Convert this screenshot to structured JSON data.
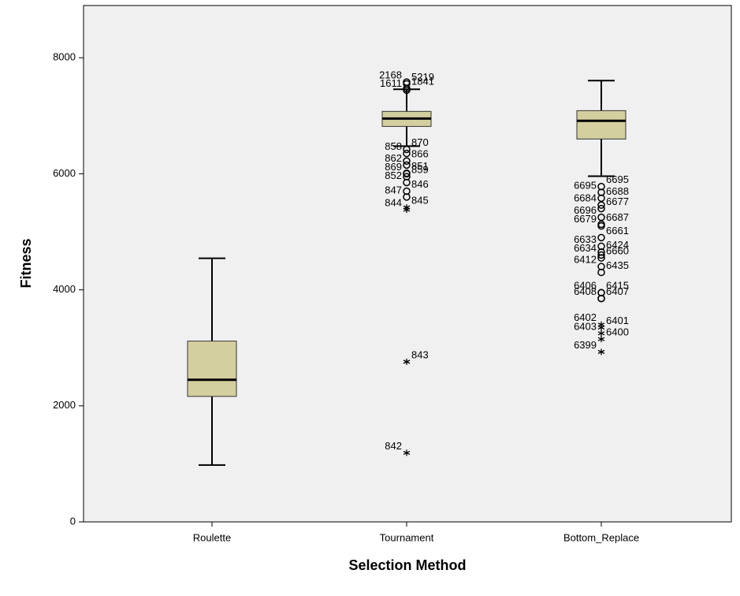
{
  "chart_data": {
    "type": "boxplot",
    "x_label": "Selection Method",
    "y_label": "Fitness",
    "categories": [
      "Roulette",
      "Tournament",
      "Bottom_Replace"
    ],
    "ylim": [
      0,
      8900
    ],
    "yticks": [
      0,
      2000,
      4000,
      6000,
      8000
    ],
    "color": "#d4cf9f",
    "background": "#f0f0f0",
    "boxes": [
      {
        "whisker_low": 980,
        "q1": 2163,
        "median": 2449,
        "q3": 3116,
        "whisker_high": 4544,
        "outliers": []
      },
      {
        "whisker_low": 6476,
        "q1": 6816,
        "median": 6952,
        "q3": 7075,
        "whisker_high": 7456,
        "outliers": [
          {
            "value": 7550,
            "label": "5219",
            "marker": "circle"
          },
          {
            "value": 7580,
            "label": "2168",
            "marker": "circle"
          },
          {
            "value": 7470,
            "label": "1841",
            "marker": "circle"
          },
          {
            "value": 7440,
            "label": "1611",
            "marker": "circle"
          },
          {
            "value": 6420,
            "label": "870",
            "marker": "circle"
          },
          {
            "value": 6350,
            "label": "858",
            "marker": "circle"
          },
          {
            "value": 6220,
            "label": "866",
            "marker": "circle"
          },
          {
            "value": 6150,
            "label": "862",
            "marker": "circle"
          },
          {
            "value": 6010,
            "label": "851",
            "marker": "circle"
          },
          {
            "value": 6000,
            "label": "869",
            "marker": "circle"
          },
          {
            "value": 5950,
            "label": "859",
            "marker": "circle"
          },
          {
            "value": 5850,
            "label": "852",
            "marker": "circle"
          },
          {
            "value": 5700,
            "label": "846",
            "marker": "circle"
          },
          {
            "value": 5600,
            "label": "847",
            "marker": "circle"
          },
          {
            "value": 5420,
            "label": "845",
            "marker": "star"
          },
          {
            "value": 5380,
            "label": "844",
            "marker": "star"
          },
          {
            "value": 2760,
            "label": "843",
            "marker": "star"
          },
          {
            "value": 1190,
            "label": "842",
            "marker": "star"
          }
        ]
      },
      {
        "whisker_low": 5959,
        "q1": 6599,
        "median": 6912,
        "q3": 7088,
        "whisker_high": 7605,
        "outliers": [
          {
            "value": 5780,
            "label": "6695",
            "marker": "circle"
          },
          {
            "value": 5680,
            "label": "6695",
            "marker": "circle"
          },
          {
            "value": 5580,
            "label": "6688",
            "marker": "circle"
          },
          {
            "value": 5460,
            "label": "6684",
            "marker": "circle"
          },
          {
            "value": 5400,
            "label": "6677",
            "marker": "circle"
          },
          {
            "value": 5250,
            "label": "6696",
            "marker": "circle"
          },
          {
            "value": 5130,
            "label": "6687",
            "marker": "circle"
          },
          {
            "value": 5100,
            "label": "6679",
            "marker": "circle"
          },
          {
            "value": 4900,
            "label": "6661",
            "marker": "circle"
          },
          {
            "value": 4750,
            "label": "6633",
            "marker": "circle"
          },
          {
            "value": 4650,
            "label": "6424",
            "marker": "circle"
          },
          {
            "value": 4600,
            "label": "6634",
            "marker": "circle"
          },
          {
            "value": 4550,
            "label": "6660",
            "marker": "circle"
          },
          {
            "value": 4400,
            "label": "6412",
            "marker": "circle"
          },
          {
            "value": 4300,
            "label": "6435",
            "marker": "circle"
          },
          {
            "value": 3950,
            "label": "6406",
            "marker": "circle"
          },
          {
            "value": 3950,
            "label": "6415",
            "marker": "circle"
          },
          {
            "value": 3850,
            "label": "6408",
            "marker": "circle"
          },
          {
            "value": 3850,
            "label": "6407",
            "marker": "circle"
          },
          {
            "value": 3400,
            "label": "6402",
            "marker": "star"
          },
          {
            "value": 3350,
            "label": "6401",
            "marker": "star"
          },
          {
            "value": 3250,
            "label": "6403",
            "marker": "star"
          },
          {
            "value": 3150,
            "label": "6400",
            "marker": "star"
          },
          {
            "value": 2930,
            "label": "6399",
            "marker": "star"
          }
        ]
      }
    ]
  }
}
